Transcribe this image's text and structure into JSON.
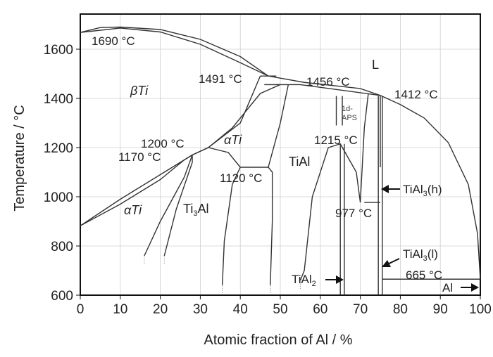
{
  "axes": {
    "x_title": "Atomic fraction of Al / %",
    "y_title": "Temperature / °C",
    "x_ticks": [
      "0",
      "10",
      "20",
      "30",
      "40",
      "50",
      "60",
      "70",
      "80",
      "90",
      "100"
    ],
    "y_ticks": [
      "600",
      "800",
      "1000",
      "1200",
      "1400",
      "1600"
    ],
    "x_range": [
      0,
      100
    ],
    "y_range": [
      600,
      1720
    ]
  },
  "regions": {
    "beta_ti": "βTi",
    "alpha_ti_upper": "αTi",
    "alpha_ti_lower": "αTi",
    "ti3al": "Ti3Al",
    "tial": "TiAl",
    "liquid": "L"
  },
  "points": {
    "p1690": "1690 °C",
    "p1491": "1491 °C",
    "p1456": "1456 °C",
    "p1412": "1412 °C",
    "p1200": "1200 °C",
    "p1170": "1170 °C",
    "p1120": "1120 °C",
    "p1215": "1215 °C",
    "p977": "977 °C",
    "p665": "665 °C"
  },
  "annotations": {
    "apsd": "1d-\nAPS",
    "tial3h": "TiAl3(h)",
    "tial3l": "TiAl3(l)",
    "tial2": "TiAl2",
    "al": "Al"
  },
  "colors": {
    "lines": "#333333",
    "grid": "#cfcfcf",
    "text": "#222222"
  }
}
